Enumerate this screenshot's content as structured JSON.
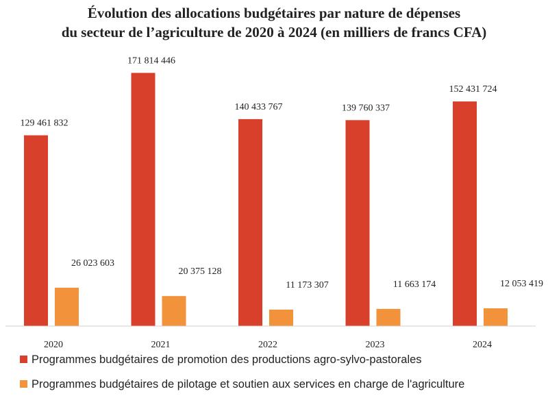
{
  "chart_data": {
    "type": "bar",
    "title": [
      "Évolution des allocations budgétaires par nature de dépenses",
      "du secteur de l’agriculture de 2020 à 2024 (en milliers de francs CFA)"
    ],
    "categories": [
      "2020",
      "2021",
      "2022",
      "2023",
      "2024"
    ],
    "series": [
      {
        "name": "Programmes budgétaires de promotion des productions agro-sylvo-pastorales",
        "color": "#D9402B",
        "values": [
          129461832,
          171814446,
          140433767,
          139760337,
          152431724
        ],
        "labels": [
          "129 461 832",
          "171 814 446",
          "140 433 767",
          "139 760 337",
          "152 431 724"
        ]
      },
      {
        "name": "Programmes budgétaires de pilotage et soutien aux services en charge de l'agriculture",
        "color": "#F2923A",
        "values": [
          26023603,
          20375128,
          11173307,
          11663174,
          12053419
        ],
        "labels": [
          "26 023 603",
          "20 375 128",
          "11 173 307",
          "11 663 174",
          "12 053 419"
        ]
      }
    ],
    "ylim": [
      0,
      172000000
    ],
    "xlabel": "",
    "ylabel": "",
    "grid": false,
    "legend": "bottom"
  }
}
